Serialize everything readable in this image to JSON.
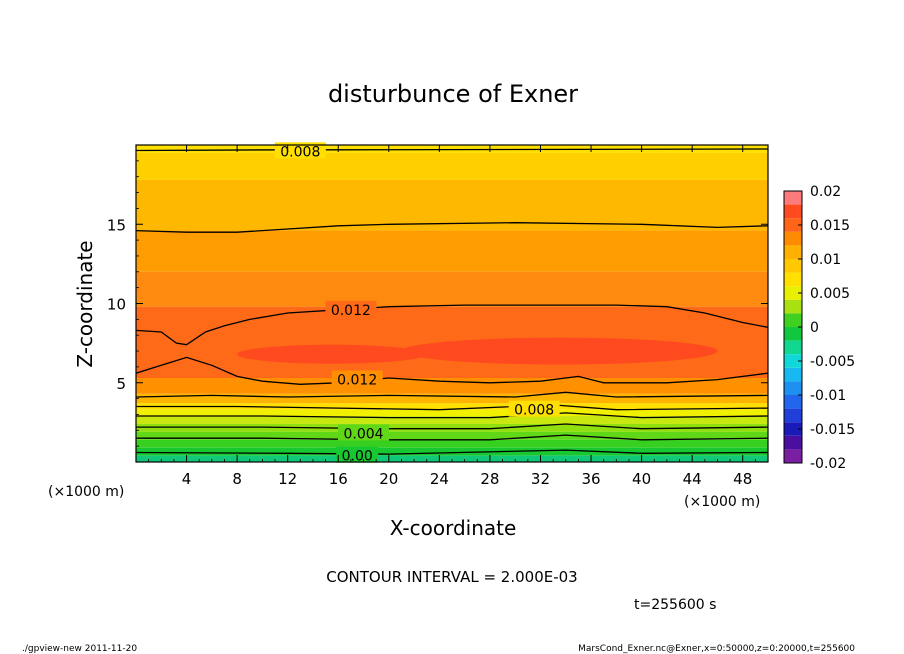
{
  "chart_data": {
    "type": "contour",
    "title": "disturbunce of Exner",
    "xlabel": "X-coordinate",
    "ylabel": "Z-coordinate",
    "x_unit_left": "(×1000 m)",
    "x_unit_right": "(×1000 m)",
    "xlim": [
      0,
      50
    ],
    "ylim": [
      0,
      20
    ],
    "x_ticks": [
      4,
      8,
      12,
      16,
      20,
      24,
      28,
      32,
      36,
      40,
      44,
      48
    ],
    "y_ticks": [
      5,
      10,
      15
    ],
    "contour_interval_text": "CONTOUR INTERVAL = 2.000E-03",
    "time_text": "t=255600 s",
    "colorbar": {
      "tick_labels": [
        "0.02",
        "0.015",
        "0.01",
        "0.005",
        "0",
        "-0.005",
        "-0.01",
        "-0.015",
        "-0.02"
      ],
      "tick_values": [
        0.02,
        0.015,
        0.01,
        0.005,
        0,
        -0.005,
        -0.01,
        -0.015,
        -0.02
      ],
      "levels": [
        -0.02,
        -0.018,
        -0.016,
        -0.014,
        -0.012,
        -0.01,
        -0.008,
        -0.006,
        -0.004,
        -0.002,
        0,
        0.002,
        0.004,
        0.006,
        0.008,
        0.01,
        0.012,
        0.014,
        0.016,
        0.018,
        0.02
      ],
      "colors": [
        "#7a1fa2",
        "#4b0fa0",
        "#1a1ab8",
        "#1f3fd8",
        "#2266ee",
        "#1e90f0",
        "#18b8f0",
        "#10d8d8",
        "#10d890",
        "#10c840",
        "#40d020",
        "#a8e010",
        "#e8f000",
        "#ffe000",
        "#ffc800",
        "#ffb000",
        "#ff8c00",
        "#ff6418",
        "#ff4a20",
        "#ff7a7a"
      ]
    },
    "bands": [
      {
        "z_bottom": 19.5,
        "z_top": 20,
        "color": "#ffe000"
      },
      {
        "z_bottom": 17.8,
        "z_top": 19.5,
        "color": "#ffd000"
      },
      {
        "z_bottom": 14.6,
        "z_top": 17.8,
        "color": "#ffb800"
      },
      {
        "z_bottom": 12.0,
        "z_top": 14.6,
        "color": "#ff9c00"
      },
      {
        "z_bottom": 9.8,
        "z_top": 12.0,
        "color": "#ff8a10"
      },
      {
        "z_bottom": 5.3,
        "z_top": 9.8,
        "color": "#ff6a18"
      },
      {
        "z_bottom": 4.3,
        "z_top": 5.3,
        "color": "#ff9000"
      },
      {
        "z_bottom": 3.7,
        "z_top": 4.3,
        "color": "#ffb400"
      },
      {
        "z_bottom": 3.3,
        "z_top": 3.7,
        "color": "#ffe000"
      },
      {
        "z_bottom": 2.9,
        "z_top": 3.3,
        "color": "#f0f000"
      },
      {
        "z_bottom": 2.4,
        "z_top": 2.9,
        "color": "#c8e810"
      },
      {
        "z_bottom": 1.9,
        "z_top": 2.4,
        "color": "#90e010"
      },
      {
        "z_bottom": 1.4,
        "z_top": 1.9,
        "color": "#60d818"
      },
      {
        "z_bottom": 0.9,
        "z_top": 1.4,
        "color": "#38d020"
      },
      {
        "z_bottom": 0.4,
        "z_top": 0.9,
        "color": "#18c830"
      },
      {
        "z_bottom": 0.0,
        "z_top": 0.4,
        "color": "#10c878"
      }
    ],
    "contour_labels": [
      {
        "text": "0.008",
        "x": 13.0,
        "z": 19.6
      },
      {
        "text": "0.012",
        "x": 17.0,
        "z": 9.6
      },
      {
        "text": "0.012",
        "x": 17.5,
        "z": 5.2
      },
      {
        "text": "0.008",
        "x": 31.5,
        "z": 3.3
      },
      {
        "text": "0.004",
        "x": 18.0,
        "z": 1.8
      },
      {
        "text": "0.00",
        "x": 17.5,
        "z": 0.4
      }
    ],
    "contour_lines": [
      {
        "level": "0.008",
        "points": [
          [
            0,
            19.65
          ],
          [
            12,
            19.7
          ],
          [
            16,
            19.7
          ],
          [
            50,
            19.75
          ]
        ]
      },
      {
        "level": "0.01",
        "points": [
          [
            0,
            14.6
          ],
          [
            4,
            14.5
          ],
          [
            8,
            14.5
          ],
          [
            12,
            14.7
          ],
          [
            16,
            14.9
          ],
          [
            20,
            15
          ],
          [
            30,
            15.1
          ],
          [
            40,
            15
          ],
          [
            46,
            14.8
          ],
          [
            50,
            14.9
          ]
        ]
      },
      {
        "level": "0.012",
        "points": [
          [
            0,
            8.3
          ],
          [
            2,
            8.2
          ],
          [
            3.2,
            7.5
          ],
          [
            4,
            7.4
          ],
          [
            5.5,
            8.2
          ],
          [
            7,
            8.6
          ],
          [
            9,
            9.0
          ],
          [
            12,
            9.4
          ],
          [
            16,
            9.6
          ],
          [
            20,
            9.8
          ],
          [
            26,
            9.9
          ],
          [
            32,
            9.9
          ],
          [
            38,
            9.9
          ],
          [
            42,
            9.8
          ],
          [
            45,
            9.4
          ],
          [
            48,
            8.8
          ],
          [
            50,
            8.5
          ]
        ]
      },
      {
        "level": "0.012b",
        "points": [
          [
            0,
            5.6
          ],
          [
            2,
            6.1
          ],
          [
            4,
            6.6
          ],
          [
            6,
            6.1
          ],
          [
            8,
            5.4
          ],
          [
            10,
            5.1
          ],
          [
            13,
            4.9
          ],
          [
            16,
            5.0
          ],
          [
            20,
            5.3
          ],
          [
            24,
            5.1
          ],
          [
            28,
            5.0
          ],
          [
            32,
            5.1
          ],
          [
            35,
            5.4
          ],
          [
            37,
            5.0
          ],
          [
            42,
            5.0
          ],
          [
            46,
            5.2
          ],
          [
            50,
            5.6
          ]
        ]
      },
      {
        "level": "0.01b",
        "points": [
          [
            0,
            4.1
          ],
          [
            6,
            4.2
          ],
          [
            12,
            4.1
          ],
          [
            20,
            4.2
          ],
          [
            30,
            4.1
          ],
          [
            34,
            4.4
          ],
          [
            38,
            4.1
          ],
          [
            50,
            4.2
          ]
        ]
      },
      {
        "level": "0.008b",
        "points": [
          [
            0,
            3.5
          ],
          [
            8,
            3.5
          ],
          [
            16,
            3.4
          ],
          [
            24,
            3.3
          ],
          [
            33,
            3.6
          ],
          [
            38,
            3.3
          ],
          [
            50,
            3.4
          ]
        ]
      },
      {
        "level": "0.006",
        "points": [
          [
            0,
            2.9
          ],
          [
            10,
            2.9
          ],
          [
            20,
            2.8
          ],
          [
            28,
            2.8
          ],
          [
            34,
            3.1
          ],
          [
            40,
            2.8
          ],
          [
            50,
            2.9
          ]
        ]
      },
      {
        "level": "0.004",
        "points": [
          [
            0,
            2.2
          ],
          [
            10,
            2.2
          ],
          [
            20,
            2.1
          ],
          [
            28,
            2.1
          ],
          [
            34,
            2.4
          ],
          [
            40,
            2.1
          ],
          [
            50,
            2.2
          ]
        ]
      },
      {
        "level": "0.002",
        "points": [
          [
            0,
            1.5
          ],
          [
            10,
            1.5
          ],
          [
            20,
            1.4
          ],
          [
            28,
            1.4
          ],
          [
            34,
            1.7
          ],
          [
            40,
            1.4
          ],
          [
            50,
            1.5
          ]
        ]
      },
      {
        "level": "0.00",
        "points": [
          [
            0,
            0.6
          ],
          [
            12,
            0.55
          ],
          [
            20,
            0.5
          ],
          [
            34,
            0.75
          ],
          [
            40,
            0.55
          ],
          [
            50,
            0.6
          ]
        ]
      }
    ],
    "hot_blobs": [
      {
        "x_center": 15.5,
        "z_center": 6.8,
        "x_halfwidth": 7.5,
        "z_halfheight": 0.6
      },
      {
        "x_center": 33.5,
        "z_center": 7.0,
        "x_halfwidth": 12.5,
        "z_halfheight": 0.85
      }
    ]
  },
  "footer": {
    "left": "./gpview-new   2011-11-20",
    "right": "MarsCond_Exner.nc@Exner,x=0:50000,z=0:20000,t=255600"
  }
}
